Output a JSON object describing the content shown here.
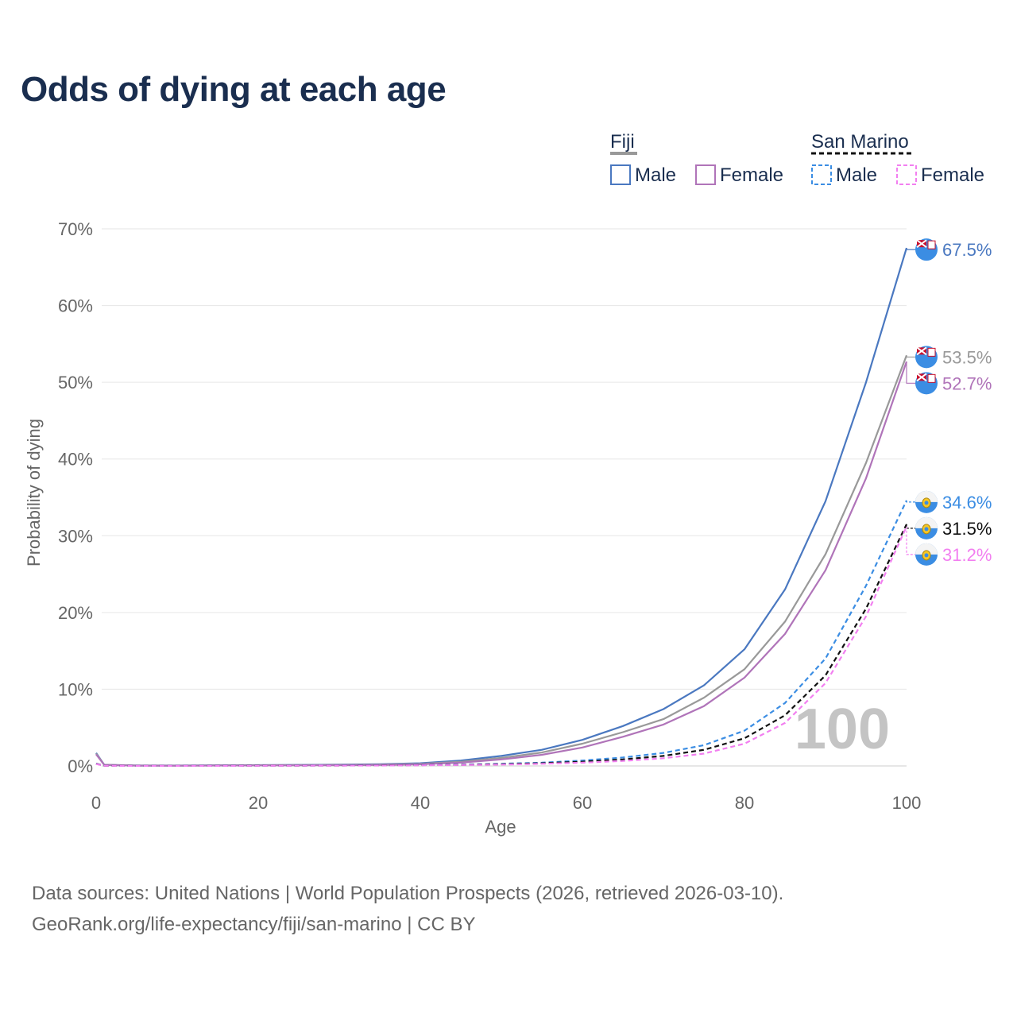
{
  "title": "Odds of dying at each age",
  "footer": {
    "line1": "Data sources: United Nations | World Population Prospects (2026, retrieved 2026-03-10).",
    "line2": "GeoRank.org/life-expectancy/fiji/san-marino | CC BY"
  },
  "legend": {
    "groups": [
      {
        "name": "Fiji",
        "style": "solid",
        "color": "#999999",
        "items": [
          {
            "label": "Male",
            "color": "#4a78c0"
          },
          {
            "label": "Female",
            "color": "#b074b9"
          }
        ]
      },
      {
        "name": "San Marino",
        "style": "dashed",
        "color": "#111111",
        "items": [
          {
            "label": "Male",
            "color": "#3b8de3"
          },
          {
            "label": "Female",
            "color": "#f27ff0"
          }
        ]
      }
    ]
  },
  "chart_data": {
    "type": "line",
    "xlabel": "Age",
    "ylabel": "Probability of dying",
    "xlim": [
      0,
      100
    ],
    "ylim": [
      0,
      70
    ],
    "xticks": [
      0,
      20,
      40,
      60,
      80,
      100
    ],
    "yticks": [
      0,
      10,
      20,
      30,
      40,
      50,
      60,
      70
    ],
    "ytick_labels": [
      "0%",
      "10%",
      "20%",
      "30%",
      "40%",
      "50%",
      "60%",
      "70%"
    ],
    "watermark": "100",
    "x": [
      0,
      1,
      5,
      10,
      15,
      20,
      25,
      30,
      35,
      40,
      45,
      50,
      55,
      60,
      65,
      70,
      75,
      80,
      85,
      90,
      95,
      100
    ],
    "series": [
      {
        "name": "Fiji Male",
        "country": "Fiji",
        "color": "#4a78c0",
        "dash": false,
        "end_label": "67.5%",
        "values": [
          1.7,
          0.15,
          0.05,
          0.05,
          0.08,
          0.1,
          0.13,
          0.17,
          0.22,
          0.35,
          0.7,
          1.3,
          2.1,
          3.4,
          5.2,
          7.4,
          10.5,
          15.2,
          23.0,
          34.5,
          50.0,
          67.5
        ]
      },
      {
        "name": "Fiji Both",
        "country": "Fiji",
        "color": "#999999",
        "dash": false,
        "end_label": "53.5%",
        "values": [
          1.6,
          0.14,
          0.05,
          0.04,
          0.06,
          0.08,
          0.1,
          0.13,
          0.17,
          0.28,
          0.55,
          1.05,
          1.75,
          2.9,
          4.4,
          6.1,
          8.9,
          12.6,
          18.8,
          27.6,
          39.5,
          53.5
        ]
      },
      {
        "name": "Fiji Female",
        "country": "Fiji",
        "color": "#b074b9",
        "dash": false,
        "end_label": "52.7%",
        "values": [
          1.5,
          0.13,
          0.04,
          0.03,
          0.05,
          0.06,
          0.08,
          0.1,
          0.13,
          0.22,
          0.42,
          0.85,
          1.45,
          2.4,
          3.8,
          5.4,
          7.8,
          11.5,
          17.2,
          25.5,
          37.5,
          52.7
        ]
      },
      {
        "name": "San Marino Male",
        "country": "San Marino",
        "color": "#3b8de3",
        "dash": true,
        "end_label": "34.6%",
        "values": [
          0.3,
          0.02,
          0.01,
          0.01,
          0.02,
          0.04,
          0.05,
          0.06,
          0.08,
          0.12,
          0.18,
          0.28,
          0.42,
          0.7,
          1.1,
          1.7,
          2.7,
          4.6,
          8.2,
          14.0,
          23.5,
          34.6
        ]
      },
      {
        "name": "San Marino Both",
        "country": "San Marino",
        "color": "#111111",
        "dash": true,
        "end_label": "31.5%",
        "values": [
          0.28,
          0.02,
          0.01,
          0.01,
          0.015,
          0.03,
          0.04,
          0.05,
          0.07,
          0.1,
          0.15,
          0.23,
          0.35,
          0.55,
          0.85,
          1.3,
          2.1,
          3.6,
          6.6,
          11.8,
          20.5,
          31.5
        ]
      },
      {
        "name": "San Marino Female",
        "country": "San Marino",
        "color": "#f27ff0",
        "dash": true,
        "end_label": "31.2%",
        "values": [
          0.25,
          0.02,
          0.01,
          0.01,
          0.01,
          0.02,
          0.03,
          0.04,
          0.05,
          0.08,
          0.12,
          0.18,
          0.28,
          0.42,
          0.65,
          1.0,
          1.6,
          2.9,
          5.6,
          10.8,
          19.5,
          31.2
        ]
      }
    ]
  }
}
